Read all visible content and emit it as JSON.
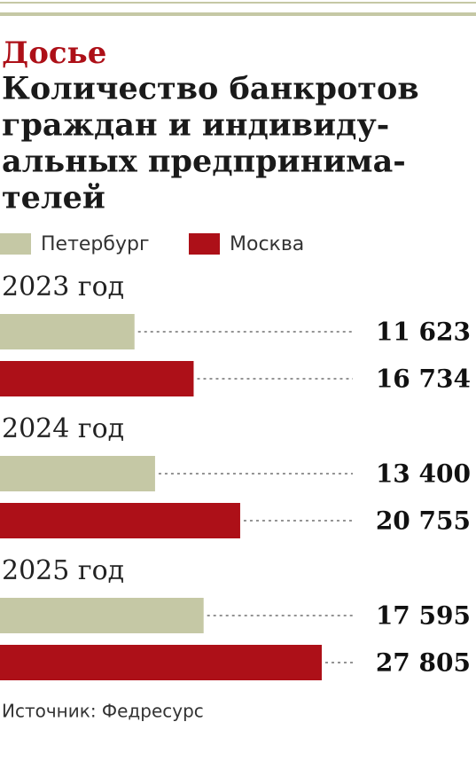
{
  "chart_data": {
    "type": "hbar",
    "subtitle": "Досье",
    "title_lines": [
      "Количество банкротов",
      "граждан и индивиду-",
      "альных предпринима-",
      "телей"
    ],
    "categories": [
      "2023 год",
      "2024 год",
      "2025 год"
    ],
    "series": [
      {
        "name": "Петербург",
        "color": "#c5c8a5",
        "values": [
          11623,
          13400,
          17595
        ],
        "value_labels": [
          "11 623",
          "13 400",
          "17 595"
        ]
      },
      {
        "name": "Москва",
        "color": "#ad1018",
        "values": [
          16734,
          20755,
          27805
        ],
        "value_labels": [
          "16 734",
          "20 755",
          "27 805"
        ]
      }
    ],
    "source": "Источник: Федресурс"
  }
}
